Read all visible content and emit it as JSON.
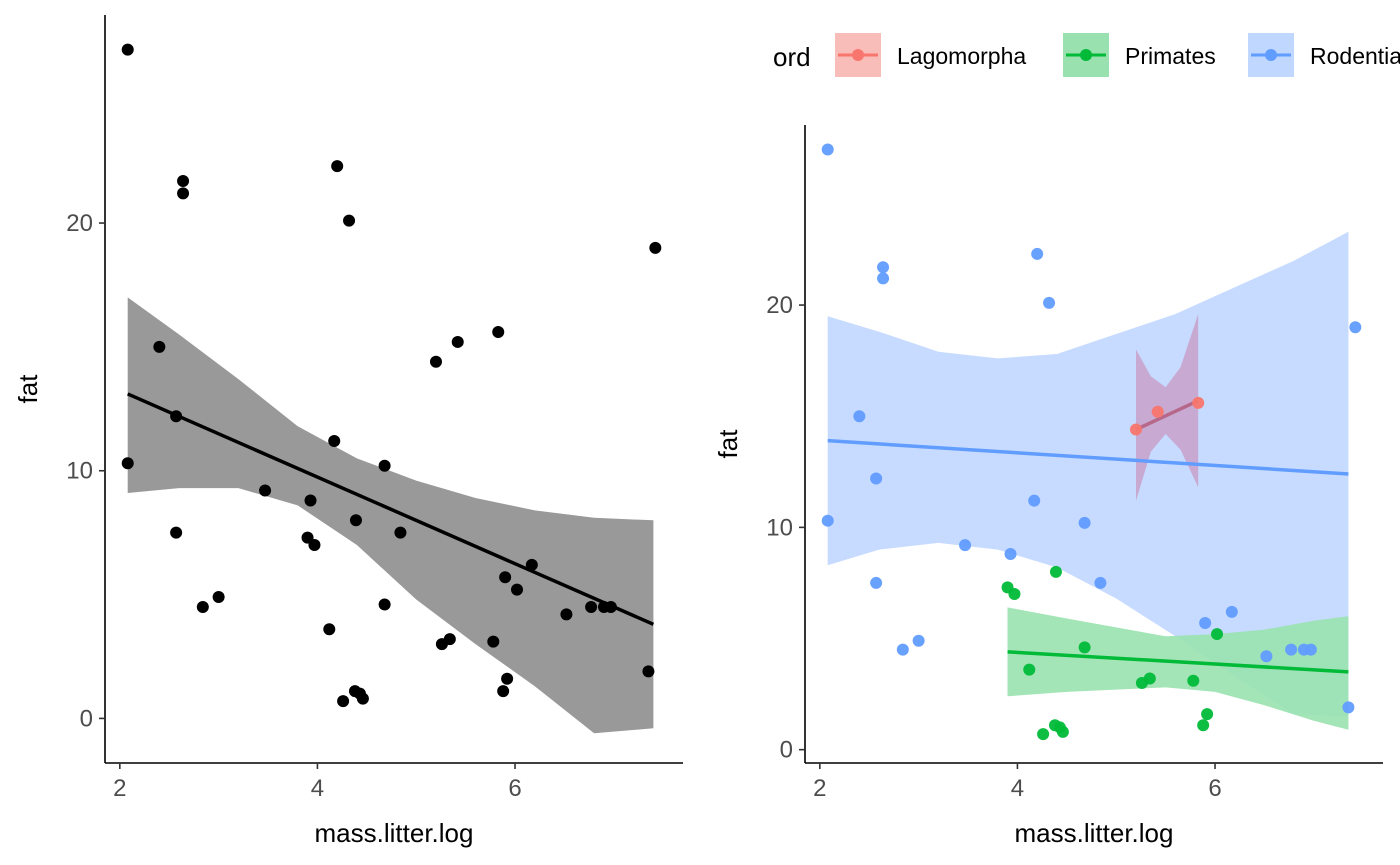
{
  "chart_data": [
    {
      "type": "scatter",
      "xlabel": "mass.litter.log",
      "ylabel": "fat",
      "xlim": [
        1.85,
        7.7
      ],
      "ylim": [
        -1.8,
        28.4
      ],
      "xticks": [
        "2",
        "4",
        "6"
      ],
      "yticks": [
        "0",
        "10",
        "20"
      ],
      "points": [
        [
          2.08,
          27.0
        ],
        [
          2.08,
          10.3
        ],
        [
          2.4,
          15.0
        ],
        [
          2.57,
          12.2
        ],
        [
          2.57,
          7.5
        ],
        [
          2.64,
          21.7
        ],
        [
          2.64,
          21.2
        ],
        [
          2.84,
          4.5
        ],
        [
          3.0,
          4.9
        ],
        [
          3.47,
          9.2
        ],
        [
          3.9,
          7.3
        ],
        [
          3.93,
          8.8
        ],
        [
          3.97,
          7.0
        ],
        [
          4.12,
          3.6
        ],
        [
          4.17,
          11.2
        ],
        [
          4.2,
          22.3
        ],
        [
          4.26,
          0.7
        ],
        [
          4.32,
          20.1
        ],
        [
          4.38,
          1.1
        ],
        [
          4.39,
          8.0
        ],
        [
          4.43,
          1.0
        ],
        [
          4.46,
          0.8
        ],
        [
          4.68,
          4.6
        ],
        [
          4.68,
          10.2
        ],
        [
          4.84,
          7.5
        ],
        [
          5.2,
          14.4
        ],
        [
          5.26,
          3.0
        ],
        [
          5.34,
          3.2
        ],
        [
          5.42,
          15.2
        ],
        [
          5.78,
          3.1
        ],
        [
          5.83,
          15.6
        ],
        [
          5.88,
          1.1
        ],
        [
          5.9,
          5.7
        ],
        [
          5.92,
          1.6
        ],
        [
          6.02,
          5.2
        ],
        [
          6.17,
          6.2
        ],
        [
          6.52,
          4.2
        ],
        [
          6.77,
          4.5
        ],
        [
          6.9,
          4.5
        ],
        [
          6.97,
          4.5
        ],
        [
          7.35,
          1.9
        ],
        [
          7.42,
          19.0
        ]
      ],
      "fit": {
        "x": [
          2.08,
          7.4
        ],
        "y": [
          13.1,
          3.8
        ]
      },
      "band": {
        "x": [
          2.08,
          2.6,
          3.2,
          3.8,
          4.4,
          5.0,
          5.6,
          6.2,
          6.8,
          7.4
        ],
        "lower": [
          9.1,
          9.3,
          9.3,
          8.6,
          7.0,
          4.8,
          3.0,
          1.3,
          -0.6,
          -0.4
        ],
        "upper": [
          17.0,
          15.5,
          13.7,
          11.8,
          10.5,
          9.6,
          8.9,
          8.4,
          8.1,
          8.0
        ]
      },
      "point_color": "#000000",
      "line_color": "#000000",
      "band_color": "#999999"
    },
    {
      "type": "scatter",
      "xlabel": "mass.litter.log",
      "ylabel": "fat",
      "xlim": [
        1.85,
        7.7
      ],
      "ylim": [
        -0.6,
        28.1
      ],
      "xticks": [
        "2",
        "4",
        "6"
      ],
      "yticks": [
        "0",
        "10",
        "20"
      ],
      "legend": {
        "title": "ord",
        "position": "top",
        "entries": [
          {
            "name": "Lagomorpha",
            "color": "#F8766D",
            "fill": "#F8BDB8"
          },
          {
            "name": "Primates",
            "color": "#00BA38",
            "fill": "#99E2AF"
          },
          {
            "name": "Rodentia",
            "color": "#619CFF",
            "fill": "#C0D7FF"
          }
        ]
      },
      "series": [
        {
          "name": "Rodentia",
          "color": "#619CFF",
          "band_color": "#C0D7FF",
          "points": [
            [
              2.08,
              27.0
            ],
            [
              2.08,
              10.3
            ],
            [
              2.4,
              15.0
            ],
            [
              2.57,
              12.2
            ],
            [
              2.57,
              7.5
            ],
            [
              2.64,
              21.7
            ],
            [
              2.64,
              21.2
            ],
            [
              2.84,
              4.5
            ],
            [
              3.0,
              4.9
            ],
            [
              3.47,
              9.2
            ],
            [
              3.93,
              8.8
            ],
            [
              4.17,
              11.2
            ],
            [
              4.2,
              22.3
            ],
            [
              4.32,
              20.1
            ],
            [
              4.68,
              10.2
            ],
            [
              4.84,
              7.5
            ],
            [
              5.9,
              5.7
            ],
            [
              6.17,
              6.2
            ],
            [
              6.52,
              4.2
            ],
            [
              6.77,
              4.5
            ],
            [
              6.9,
              4.5
            ],
            [
              6.97,
              4.5
            ],
            [
              7.35,
              1.9
            ],
            [
              7.42,
              19.0
            ]
          ],
          "fit": {
            "x": [
              2.08,
              7.35
            ],
            "y": [
              13.9,
              12.4
            ]
          },
          "band": {
            "x": [
              2.08,
              2.6,
              3.2,
              3.8,
              4.4,
              5.0,
              5.6,
              6.2,
              6.8,
              7.35
            ],
            "lower": [
              8.3,
              9.0,
              9.3,
              9.0,
              8.2,
              6.8,
              5.1,
              3.3,
              1.6,
              1.5
            ],
            "upper": [
              19.5,
              18.8,
              17.9,
              17.6,
              17.8,
              18.7,
              19.6,
              20.8,
              22.0,
              23.3
            ]
          }
        },
        {
          "name": "Primates",
          "color": "#00BA38",
          "band_color": "#99E2AF",
          "points": [
            [
              3.9,
              7.3
            ],
            [
              3.97,
              7.0
            ],
            [
              4.12,
              3.6
            ],
            [
              4.26,
              0.7
            ],
            [
              4.38,
              1.1
            ],
            [
              4.39,
              8.0
            ],
            [
              4.43,
              1.0
            ],
            [
              4.46,
              0.8
            ],
            [
              4.68,
              4.6
            ],
            [
              5.26,
              3.0
            ],
            [
              5.34,
              3.2
            ],
            [
              5.78,
              3.1
            ],
            [
              5.88,
              1.1
            ],
            [
              5.92,
              1.6
            ],
            [
              6.02,
              5.2
            ]
          ],
          "fit": {
            "x": [
              3.9,
              7.35
            ],
            "y": [
              4.4,
              3.5
            ]
          },
          "band": {
            "x": [
              3.9,
              4.5,
              5.0,
              5.5,
              6.0,
              6.5,
              7.0,
              7.35
            ],
            "lower": [
              2.4,
              2.6,
              2.7,
              2.8,
              2.6,
              2.0,
              1.3,
              0.9
            ],
            "upper": [
              6.4,
              5.9,
              5.5,
              5.1,
              5.2,
              5.4,
              5.8,
              6.0
            ]
          }
        },
        {
          "name": "Lagomorpha",
          "color": "#F8766D",
          "line_color": "#B5688A",
          "band_color": "#C8A3CC",
          "points": [
            [
              5.2,
              14.4
            ],
            [
              5.42,
              15.2
            ],
            [
              5.83,
              15.6
            ]
          ],
          "fit": {
            "x": [
              5.2,
              5.83
            ],
            "y": [
              14.4,
              15.7
            ]
          },
          "band": {
            "x": [
              5.2,
              5.35,
              5.5,
              5.65,
              5.83
            ],
            "lower": [
              11.2,
              13.4,
              14.2,
              13.5,
              11.8
            ],
            "upper": [
              18.0,
              16.8,
              16.3,
              17.2,
              19.6
            ]
          }
        }
      ]
    }
  ]
}
